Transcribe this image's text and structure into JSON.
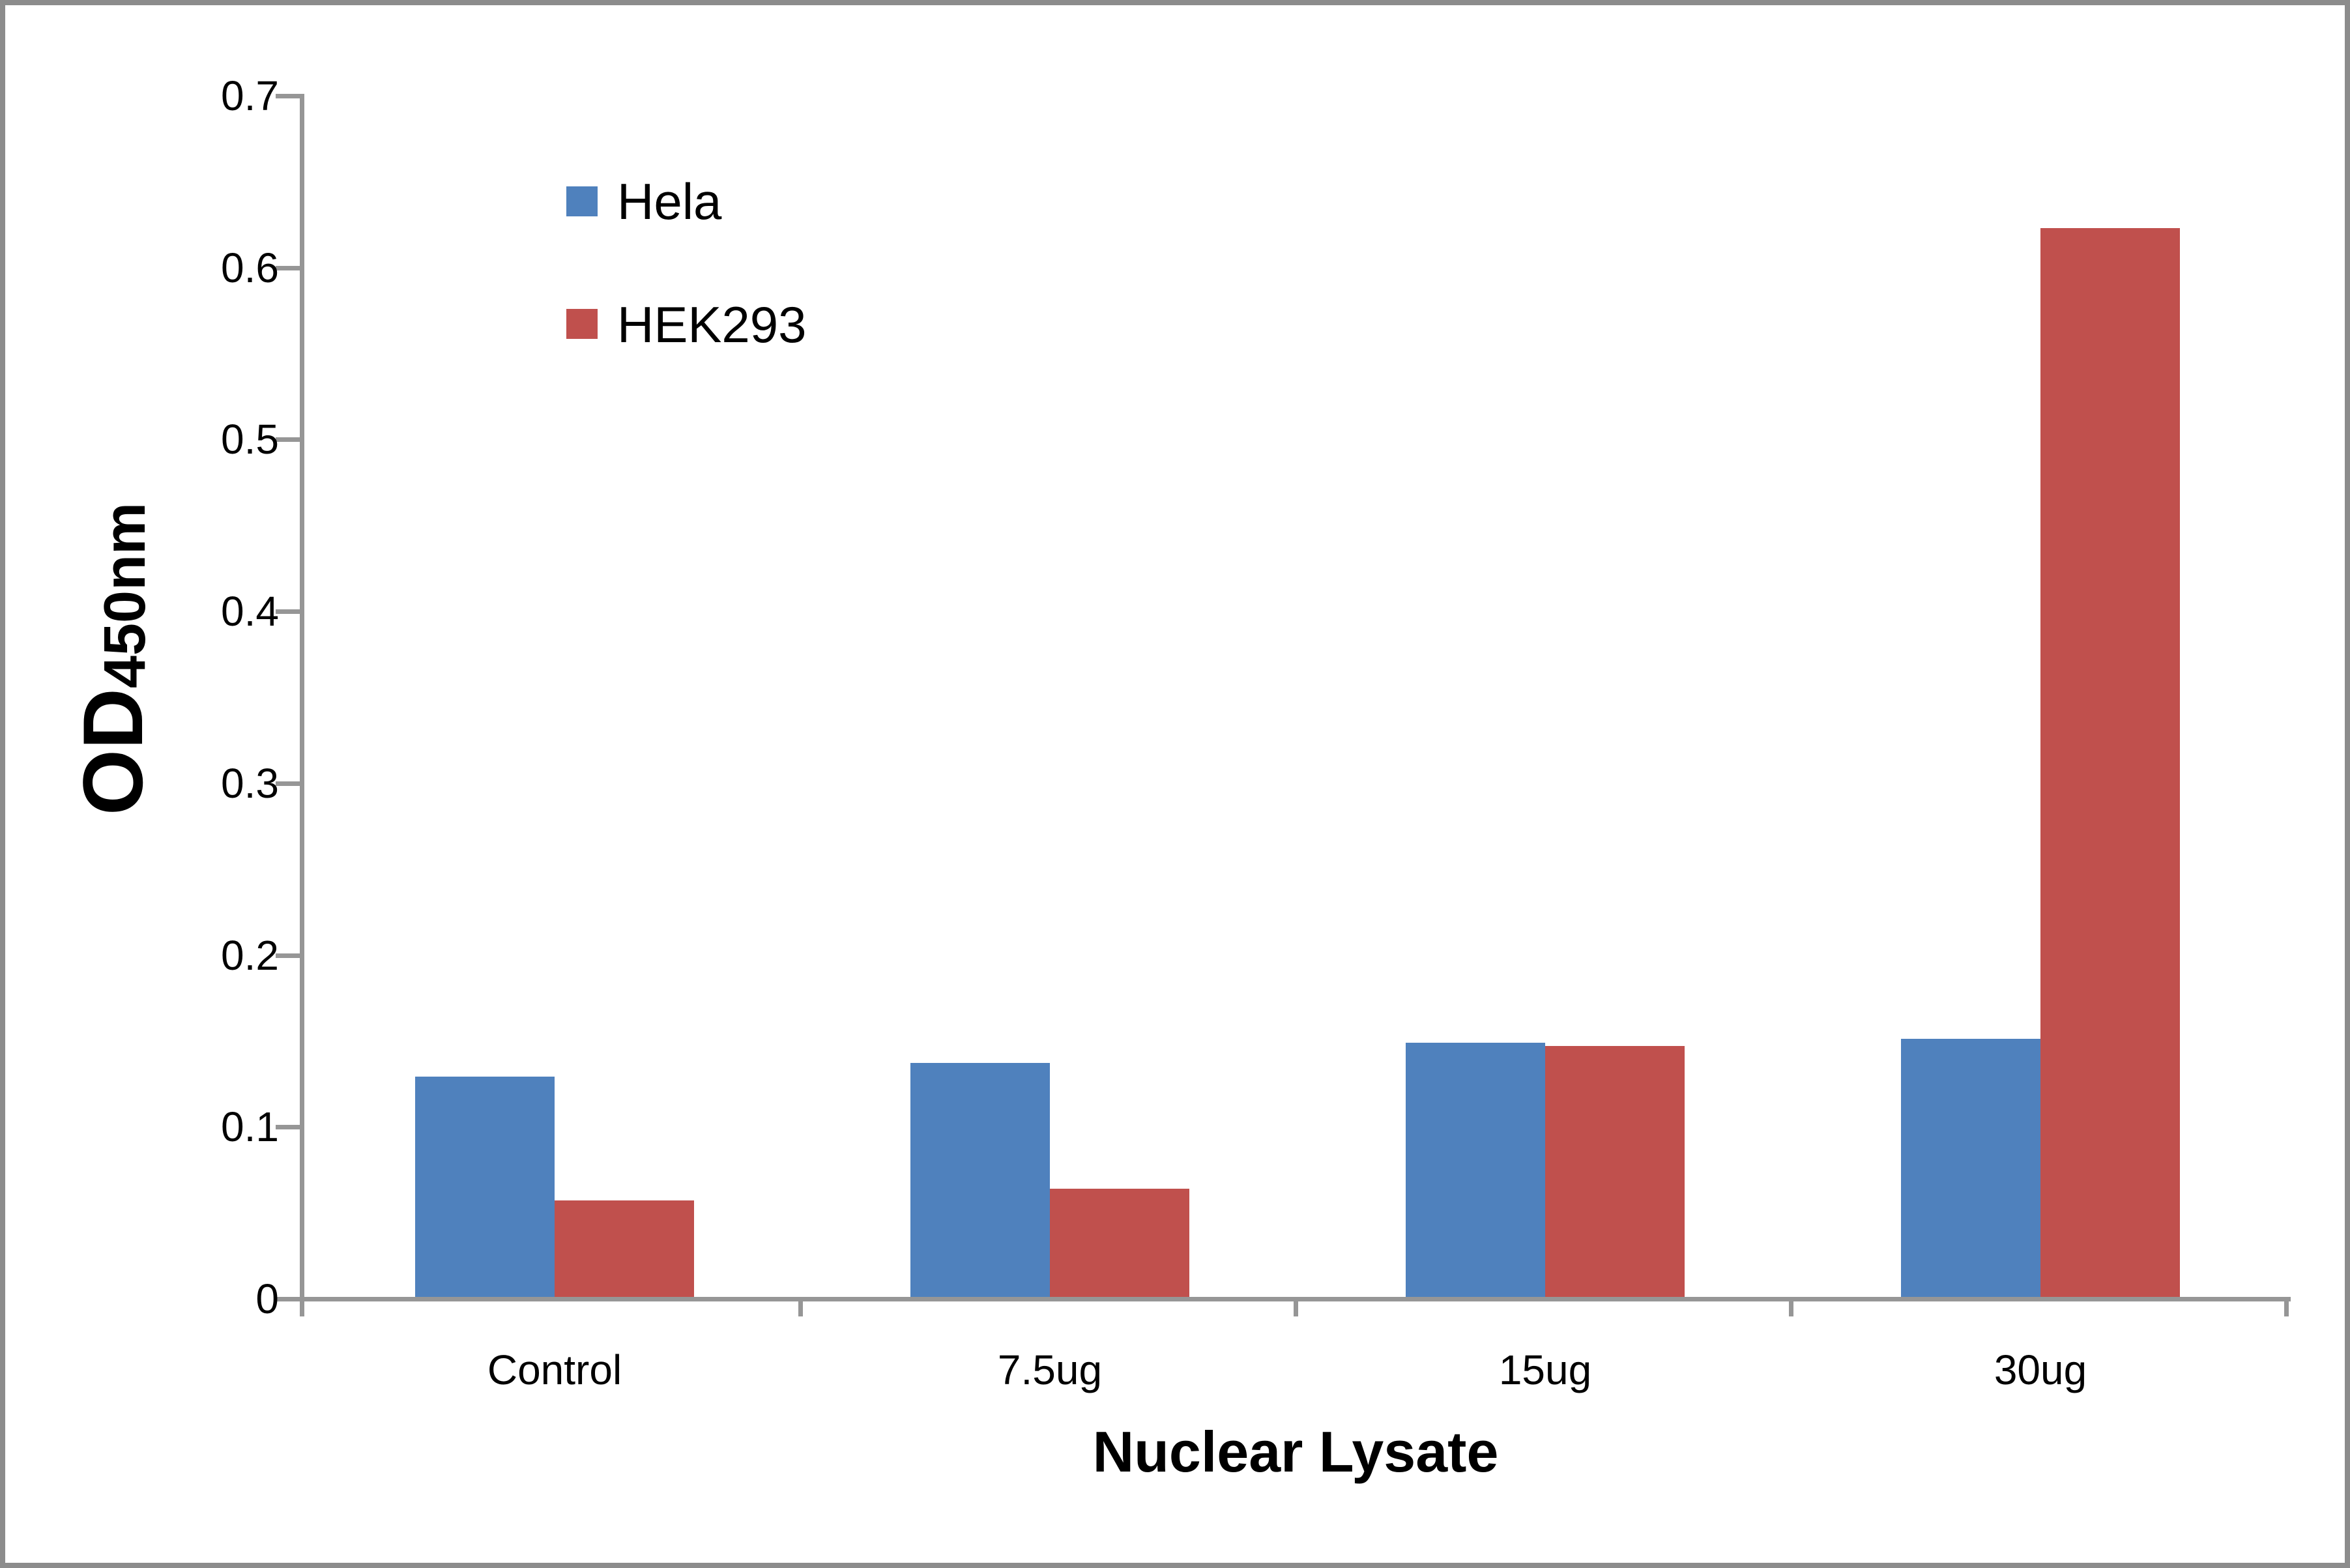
{
  "figure": {
    "background": "#FFFFFF",
    "border_color": "#8C8C8C"
  },
  "chart_data": {
    "type": "bar",
    "title": "",
    "categories": [
      "Control",
      "7.5ug",
      "15ug",
      "30ug"
    ],
    "series": [
      {
        "name": "Hela",
        "color": "#4F81BD",
        "values": [
          0.128,
          0.136,
          0.148,
          0.15
        ]
      },
      {
        "name": "HEK293",
        "color": "#C0504D",
        "values": [
          0.056,
          0.063,
          0.146,
          0.622
        ]
      }
    ],
    "xlabel": "Nuclear Lysate",
    "ylabel_main": "OD",
    "ylabel_subscript": "450nm",
    "ylim": [
      0,
      0.7
    ],
    "ytick_labels": [
      "0.7",
      "0.6",
      "0.5",
      "0.4",
      "0.3",
      "0.2",
      "0.1",
      "0"
    ],
    "grid": false,
    "legend_position": "inside-top-left",
    "axis_color": "#969696"
  },
  "legend": {
    "items": [
      {
        "label": "Hela",
        "color": "#4F81BD"
      },
      {
        "label": "HEK293",
        "color": "#C0504D"
      }
    ]
  }
}
